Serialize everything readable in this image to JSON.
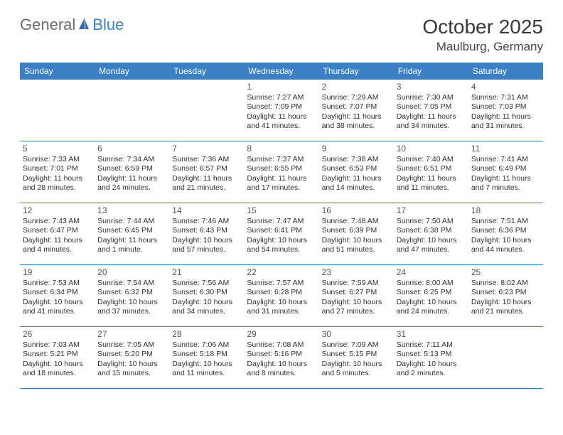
{
  "logo": {
    "general": "General",
    "blue": "Blue"
  },
  "title": "October 2025",
  "location": "Maulburg, Germany",
  "colors": {
    "accent": "#3b7fc4",
    "logo_gray": "#6b6b6b",
    "text_dark": "#303030",
    "title_dark": "#383838",
    "daynum": "#575757",
    "background": "#ffffff"
  },
  "weekdays": [
    "Sunday",
    "Monday",
    "Tuesday",
    "Wednesday",
    "Thursday",
    "Friday",
    "Saturday"
  ],
  "weeks": [
    [
      {
        "num": "",
        "sunrise": "",
        "sunset": "",
        "daylight": ""
      },
      {
        "num": "",
        "sunrise": "",
        "sunset": "",
        "daylight": ""
      },
      {
        "num": "",
        "sunrise": "",
        "sunset": "",
        "daylight": ""
      },
      {
        "num": "1",
        "sunrise": "Sunrise: 7:27 AM",
        "sunset": "Sunset: 7:09 PM",
        "daylight": "Daylight: 11 hours and 41 minutes."
      },
      {
        "num": "2",
        "sunrise": "Sunrise: 7:29 AM",
        "sunset": "Sunset: 7:07 PM",
        "daylight": "Daylight: 11 hours and 38 minutes."
      },
      {
        "num": "3",
        "sunrise": "Sunrise: 7:30 AM",
        "sunset": "Sunset: 7:05 PM",
        "daylight": "Daylight: 11 hours and 34 minutes."
      },
      {
        "num": "4",
        "sunrise": "Sunrise: 7:31 AM",
        "sunset": "Sunset: 7:03 PM",
        "daylight": "Daylight: 11 hours and 31 minutes."
      }
    ],
    [
      {
        "num": "5",
        "sunrise": "Sunrise: 7:33 AM",
        "sunset": "Sunset: 7:01 PM",
        "daylight": "Daylight: 11 hours and 28 minutes."
      },
      {
        "num": "6",
        "sunrise": "Sunrise: 7:34 AM",
        "sunset": "Sunset: 6:59 PM",
        "daylight": "Daylight: 11 hours and 24 minutes."
      },
      {
        "num": "7",
        "sunrise": "Sunrise: 7:36 AM",
        "sunset": "Sunset: 6:57 PM",
        "daylight": "Daylight: 11 hours and 21 minutes."
      },
      {
        "num": "8",
        "sunrise": "Sunrise: 7:37 AM",
        "sunset": "Sunset: 6:55 PM",
        "daylight": "Daylight: 11 hours and 17 minutes."
      },
      {
        "num": "9",
        "sunrise": "Sunrise: 7:38 AM",
        "sunset": "Sunset: 6:53 PM",
        "daylight": "Daylight: 11 hours and 14 minutes."
      },
      {
        "num": "10",
        "sunrise": "Sunrise: 7:40 AM",
        "sunset": "Sunset: 6:51 PM",
        "daylight": "Daylight: 11 hours and 11 minutes."
      },
      {
        "num": "11",
        "sunrise": "Sunrise: 7:41 AM",
        "sunset": "Sunset: 6:49 PM",
        "daylight": "Daylight: 11 hours and 7 minutes."
      }
    ],
    [
      {
        "num": "12",
        "sunrise": "Sunrise: 7:43 AM",
        "sunset": "Sunset: 6:47 PM",
        "daylight": "Daylight: 11 hours and 4 minutes."
      },
      {
        "num": "13",
        "sunrise": "Sunrise: 7:44 AM",
        "sunset": "Sunset: 6:45 PM",
        "daylight": "Daylight: 11 hours and 1 minute."
      },
      {
        "num": "14",
        "sunrise": "Sunrise: 7:46 AM",
        "sunset": "Sunset: 6:43 PM",
        "daylight": "Daylight: 10 hours and 57 minutes."
      },
      {
        "num": "15",
        "sunrise": "Sunrise: 7:47 AM",
        "sunset": "Sunset: 6:41 PM",
        "daylight": "Daylight: 10 hours and 54 minutes."
      },
      {
        "num": "16",
        "sunrise": "Sunrise: 7:48 AM",
        "sunset": "Sunset: 6:39 PM",
        "daylight": "Daylight: 10 hours and 51 minutes."
      },
      {
        "num": "17",
        "sunrise": "Sunrise: 7:50 AM",
        "sunset": "Sunset: 6:38 PM",
        "daylight": "Daylight: 10 hours and 47 minutes."
      },
      {
        "num": "18",
        "sunrise": "Sunrise: 7:51 AM",
        "sunset": "Sunset: 6:36 PM",
        "daylight": "Daylight: 10 hours and 44 minutes."
      }
    ],
    [
      {
        "num": "19",
        "sunrise": "Sunrise: 7:53 AM",
        "sunset": "Sunset: 6:34 PM",
        "daylight": "Daylight: 10 hours and 41 minutes."
      },
      {
        "num": "20",
        "sunrise": "Sunrise: 7:54 AM",
        "sunset": "Sunset: 6:32 PM",
        "daylight": "Daylight: 10 hours and 37 minutes."
      },
      {
        "num": "21",
        "sunrise": "Sunrise: 7:56 AM",
        "sunset": "Sunset: 6:30 PM",
        "daylight": "Daylight: 10 hours and 34 minutes."
      },
      {
        "num": "22",
        "sunrise": "Sunrise: 7:57 AM",
        "sunset": "Sunset: 6:28 PM",
        "daylight": "Daylight: 10 hours and 31 minutes."
      },
      {
        "num": "23",
        "sunrise": "Sunrise: 7:59 AM",
        "sunset": "Sunset: 6:27 PM",
        "daylight": "Daylight: 10 hours and 27 minutes."
      },
      {
        "num": "24",
        "sunrise": "Sunrise: 8:00 AM",
        "sunset": "Sunset: 6:25 PM",
        "daylight": "Daylight: 10 hours and 24 minutes."
      },
      {
        "num": "25",
        "sunrise": "Sunrise: 8:02 AM",
        "sunset": "Sunset: 6:23 PM",
        "daylight": "Daylight: 10 hours and 21 minutes."
      }
    ],
    [
      {
        "num": "26",
        "sunrise": "Sunrise: 7:03 AM",
        "sunset": "Sunset: 5:21 PM",
        "daylight": "Daylight: 10 hours and 18 minutes."
      },
      {
        "num": "27",
        "sunrise": "Sunrise: 7:05 AM",
        "sunset": "Sunset: 5:20 PM",
        "daylight": "Daylight: 10 hours and 15 minutes."
      },
      {
        "num": "28",
        "sunrise": "Sunrise: 7:06 AM",
        "sunset": "Sunset: 5:18 PM",
        "daylight": "Daylight: 10 hours and 11 minutes."
      },
      {
        "num": "29",
        "sunrise": "Sunrise: 7:08 AM",
        "sunset": "Sunset: 5:16 PM",
        "daylight": "Daylight: 10 hours and 8 minutes."
      },
      {
        "num": "30",
        "sunrise": "Sunrise: 7:09 AM",
        "sunset": "Sunset: 5:15 PM",
        "daylight": "Daylight: 10 hours and 5 minutes."
      },
      {
        "num": "31",
        "sunrise": "Sunrise: 7:11 AM",
        "sunset": "Sunset: 5:13 PM",
        "daylight": "Daylight: 10 hours and 2 minutes."
      },
      {
        "num": "",
        "sunrise": "",
        "sunset": "",
        "daylight": ""
      }
    ]
  ]
}
